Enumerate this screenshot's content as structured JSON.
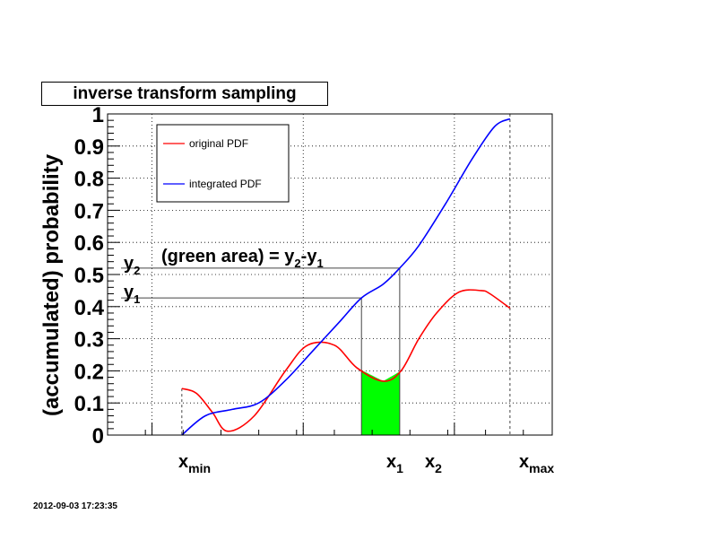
{
  "chart_data": {
    "type": "line",
    "title": "inverse transform sampling",
    "ylabel": "(accumulated) probability",
    "xlabel": "",
    "ylim": [
      0,
      1
    ],
    "xlim": [
      0,
      1
    ],
    "y_ticks": [
      "0",
      "0.1",
      "0.2",
      "0.3",
      "0.4",
      "0.5",
      "0.6",
      "0.7",
      "0.8",
      "0.9",
      "1"
    ],
    "x_vertical_gridlines_at": [
      0.1,
      0.44,
      0.78
    ],
    "legend": {
      "placement": "top-left",
      "entries": [
        {
          "label": "original PDF",
          "color": "#ff0000"
        },
        {
          "label": "integrated PDF",
          "color": "#0000ff"
        }
      ]
    },
    "series": [
      {
        "name": "original PDF",
        "color": "#ff0000",
        "x": [
          0.167,
          0.2,
          0.236,
          0.27,
          0.33,
          0.4,
          0.45,
          0.51,
          0.56,
          0.62,
          0.66,
          0.7,
          0.74,
          0.79,
          0.84,
          0.86,
          0.905
        ],
        "y": [
          0.145,
          0.13,
          0.07,
          0.012,
          0.06,
          0.2,
          0.28,
          0.28,
          0.21,
          0.168,
          0.2,
          0.3,
          0.38,
          0.445,
          0.45,
          0.44,
          0.395
        ]
      },
      {
        "name": "integrated PDF",
        "color": "#0000ff",
        "x": [
          0.167,
          0.22,
          0.28,
          0.34,
          0.4,
          0.46,
          0.52,
          0.571,
          0.62,
          0.657,
          0.7,
          0.76,
          0.82,
          0.87,
          0.905
        ],
        "y": [
          0.0,
          0.06,
          0.08,
          0.1,
          0.17,
          0.26,
          0.35,
          0.427,
          0.47,
          0.52,
          0.59,
          0.72,
          0.86,
          0.96,
          0.985
        ]
      }
    ],
    "markers": {
      "x_min": 0.167,
      "x_1": 0.571,
      "x_2": 0.657,
      "x_max": 0.905,
      "y_1": 0.427,
      "y_2": 0.52
    },
    "shaded_region": {
      "x_from": 0.571,
      "x_to": 0.657,
      "under": "original PDF",
      "color": "#00ff00"
    },
    "annotation_parts": [
      "(green area) = y",
      "2",
      "-y",
      "1"
    ],
    "axis_marker_labels": {
      "xmin": [
        "x",
        "min"
      ],
      "x1": [
        "x",
        "1"
      ],
      "x2": [
        "x",
        "2"
      ],
      "xmax": [
        "x",
        "max"
      ],
      "y1": [
        "y",
        "1"
      ],
      "y2": [
        "y",
        "2"
      ]
    },
    "timestamp": "2012-09-03 17:23:35"
  }
}
